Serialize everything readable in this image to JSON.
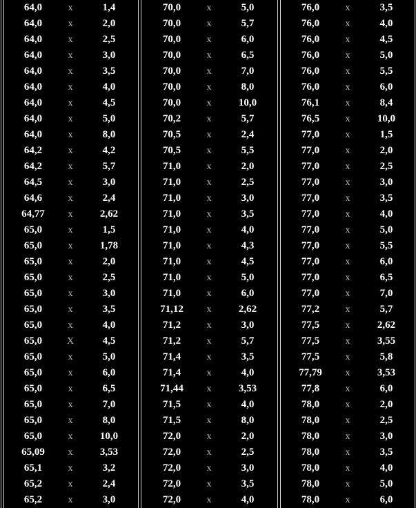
{
  "separator": "x",
  "columns": [
    [
      [
        "64,0",
        "x",
        "1,4"
      ],
      [
        "64,0",
        "x",
        "2,0"
      ],
      [
        "64,0",
        "x",
        "2,5"
      ],
      [
        "64,0",
        "x",
        "3,0"
      ],
      [
        "64,0",
        "x",
        "3,5"
      ],
      [
        "64,0",
        "x",
        "4,0"
      ],
      [
        "64,0",
        "x",
        "4,5"
      ],
      [
        "64,0",
        "x",
        "5,0"
      ],
      [
        "64,0",
        "x",
        "8,0"
      ],
      [
        "64,2",
        "x",
        "4,2"
      ],
      [
        "64,2",
        "x",
        "5,7"
      ],
      [
        "64,5",
        "x",
        "3,0"
      ],
      [
        "64,6",
        "x",
        "2,4"
      ],
      [
        "64,77",
        "x",
        "2,62"
      ],
      [
        "65,0",
        "x",
        "1,5"
      ],
      [
        "65,0",
        "x",
        "1,78"
      ],
      [
        "65,0",
        "x",
        "2,0"
      ],
      [
        "65,0",
        "x",
        "2,5"
      ],
      [
        "65,0",
        "x",
        "3,0"
      ],
      [
        "65,0",
        "x",
        "3,5"
      ],
      [
        "65,0",
        "x",
        "4,0"
      ],
      [
        "65,0",
        "X",
        "4,5"
      ],
      [
        "65,0",
        "x",
        "5,0"
      ],
      [
        "65,0",
        "x",
        "6,0"
      ],
      [
        "65,0",
        "x",
        "6,5"
      ],
      [
        "65,0",
        "x",
        "7,0"
      ],
      [
        "65,0",
        "x",
        "8,0"
      ],
      [
        "65,0",
        "x",
        "10,0"
      ],
      [
        "65,09",
        "x",
        "3,53"
      ],
      [
        "65,1",
        "x",
        "3,2"
      ],
      [
        "65,2",
        "x",
        "2,4"
      ],
      [
        "65,2",
        "x",
        "3,0"
      ]
    ],
    [
      [
        "70,0",
        "x",
        "5,0"
      ],
      [
        "70,0",
        "x",
        "5,7"
      ],
      [
        "70,0",
        "x",
        "6,0"
      ],
      [
        "70,0",
        "x",
        "6,5"
      ],
      [
        "70,0",
        "x",
        "7,0"
      ],
      [
        "70,0",
        "x",
        "8,0"
      ],
      [
        "70,0",
        "x",
        "10,0"
      ],
      [
        "70,2",
        "x",
        "5,7"
      ],
      [
        "70,5",
        "x",
        "2,4"
      ],
      [
        "70,5",
        "x",
        "5,5"
      ],
      [
        "71,0",
        "x",
        "2,0"
      ],
      [
        "71,0",
        "x",
        "2,5"
      ],
      [
        "71,0",
        "x",
        "3,0"
      ],
      [
        "71,0",
        "x",
        "3,5"
      ],
      [
        "71,0",
        "x",
        "4,0"
      ],
      [
        "71,0",
        "x",
        "4,3"
      ],
      [
        "71,0",
        "x",
        "4,5"
      ],
      [
        "71,0",
        "x",
        "5,0"
      ],
      [
        "71,0",
        "x",
        "6,0"
      ],
      [
        "71,12",
        "x",
        "2,62"
      ],
      [
        "71,2",
        "x",
        "3,0"
      ],
      [
        "71,2",
        "x",
        "5,7"
      ],
      [
        "71,4",
        "x",
        "3,5"
      ],
      [
        "71,4",
        "x",
        "4,0"
      ],
      [
        "71,44",
        "x",
        "3,53"
      ],
      [
        "71,5",
        "x",
        "4,0"
      ],
      [
        "71,5",
        "x",
        "8,0"
      ],
      [
        "72,0",
        "x",
        "2,0"
      ],
      [
        "72,0",
        "x",
        "2,5"
      ],
      [
        "72,0",
        "x",
        "3,0"
      ],
      [
        "72,0",
        "x",
        "3,5"
      ],
      [
        "72,0",
        "x",
        "4,0"
      ]
    ],
    [
      [
        "76,0",
        "x",
        "3,5"
      ],
      [
        "76,0",
        "x",
        "4,0"
      ],
      [
        "76,0",
        "x",
        "4,5"
      ],
      [
        "76,0",
        "x",
        "5,0"
      ],
      [
        "76,0",
        "x",
        "5,5"
      ],
      [
        "76,0",
        "x",
        "6,0"
      ],
      [
        "76,1",
        "x",
        "8,4"
      ],
      [
        "76,5",
        "x",
        "10,0"
      ],
      [
        "77,0",
        "x",
        "1,5"
      ],
      [
        "77,0",
        "x",
        "2,0"
      ],
      [
        "77,0",
        "x",
        "2,5"
      ],
      [
        "77,0",
        "x",
        "3,0"
      ],
      [
        "77,0",
        "x",
        "3,5"
      ],
      [
        "77,0",
        "x",
        "4,0"
      ],
      [
        "77,0",
        "x",
        "5,0"
      ],
      [
        "77,0",
        "x",
        "5,5"
      ],
      [
        "77,0",
        "x",
        "6,0"
      ],
      [
        "77,0",
        "x",
        "6,5"
      ],
      [
        "77,0",
        "x",
        "7,0"
      ],
      [
        "77,2",
        "x",
        "5,7"
      ],
      [
        "77,5",
        "x",
        "2,62"
      ],
      [
        "77,5",
        "x",
        "3,55"
      ],
      [
        "77,5",
        "x",
        "5,8"
      ],
      [
        "77,79",
        "x",
        "3,53"
      ],
      [
        "77,8",
        "x",
        "6,0"
      ],
      [
        "78,0",
        "x",
        "2,0"
      ],
      [
        "78,0",
        "x",
        "2,5"
      ],
      [
        "78,0",
        "x",
        "3,0"
      ],
      [
        "78,0",
        "x",
        "3,5"
      ],
      [
        "78,0",
        "x",
        "4,0"
      ],
      [
        "78,0",
        "x",
        "5,0"
      ],
      [
        "78,0",
        "x",
        "6,0"
      ]
    ]
  ]
}
